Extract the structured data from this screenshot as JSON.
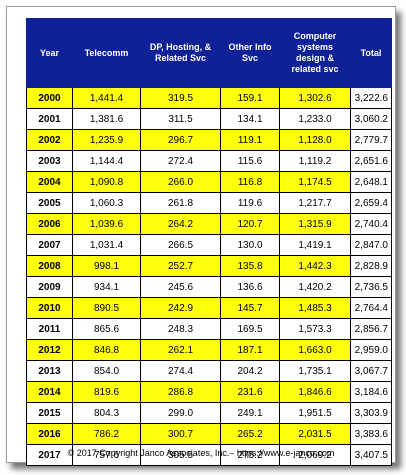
{
  "chart_data": {
    "type": "table",
    "columns": [
      "Year",
      "Telecomm",
      "DP, Hosting, & Related Svc",
      "Other Info Svc",
      "Computer systems design & related svc",
      "Total"
    ],
    "rows": [
      [
        "2000",
        "1,441.4",
        "319.5",
        "159.1",
        "1,302.6",
        "3,222.6"
      ],
      [
        "2001",
        "1,381.6",
        "311.5",
        "134.1",
        "1,233.0",
        "3,060.2"
      ],
      [
        "2002",
        "1,235.9",
        "296.7",
        "119.1",
        "1,128.0",
        "2,779.7"
      ],
      [
        "2003",
        "1,144.4",
        "272.4",
        "115.6",
        "1,119.2",
        "2,651.6"
      ],
      [
        "2004",
        "1,090.8",
        "266.0",
        "116.8",
        "1,174.5",
        "2,648.1"
      ],
      [
        "2005",
        "1,060.3",
        "261.8",
        "119.6",
        "1,217.7",
        "2,659.4"
      ],
      [
        "2006",
        "1,039.6",
        "264.2",
        "120.7",
        "1,315.9",
        "2,740.4"
      ],
      [
        "2007",
        "1,031.4",
        "266.5",
        "130.0",
        "1,419.1",
        "2,847.0"
      ],
      [
        "2008",
        "998.1",
        "252.7",
        "135.8",
        "1,442.3",
        "2,828.9"
      ],
      [
        "2009",
        "934.1",
        "245.6",
        "136.6",
        "1,420.2",
        "2,736.5"
      ],
      [
        "2010",
        "890.5",
        "242.9",
        "145.7",
        "1,485.3",
        "2,764.4"
      ],
      [
        "2011",
        "865.6",
        "248.3",
        "169.5",
        "1,573.3",
        "2,856.7"
      ],
      [
        "2012",
        "846.8",
        "262.1",
        "187.1",
        "1,663.0",
        "2,959.0"
      ],
      [
        "2013",
        "854.0",
        "274.4",
        "204.2",
        "1,735.1",
        "3,067.7"
      ],
      [
        "2014",
        "819.6",
        "286.8",
        "231.6",
        "1,846.6",
        "3,184.6"
      ],
      [
        "2015",
        "804.3",
        "299.0",
        "249.1",
        "1,951.5",
        "3,303.9"
      ],
      [
        "2016",
        "786.2",
        "300.7",
        "265.2",
        "2,031.5",
        "3,383.6"
      ],
      [
        "2017",
        "757.6",
        "305.5",
        "275.2",
        "2,069.2",
        "3,407.5"
      ]
    ]
  },
  "header_lines": {
    "c0": [
      "Year"
    ],
    "c1": [
      "Telecomm"
    ],
    "c2": [
      "DP, Hosting, &",
      "Related Svc"
    ],
    "c3": [
      "Other Info",
      "Svc"
    ],
    "c4": [
      "Computer",
      "systems",
      "design &",
      "related svc"
    ],
    "c5": [
      "Total"
    ]
  },
  "footer": "© 2017 Copyright Janco Associates, Inc.– https://www.e-janco.com",
  "colors": {
    "header_bg": "#0f2196",
    "highlight_row": "#ffff0b",
    "plain_row": "#ffffff"
  }
}
